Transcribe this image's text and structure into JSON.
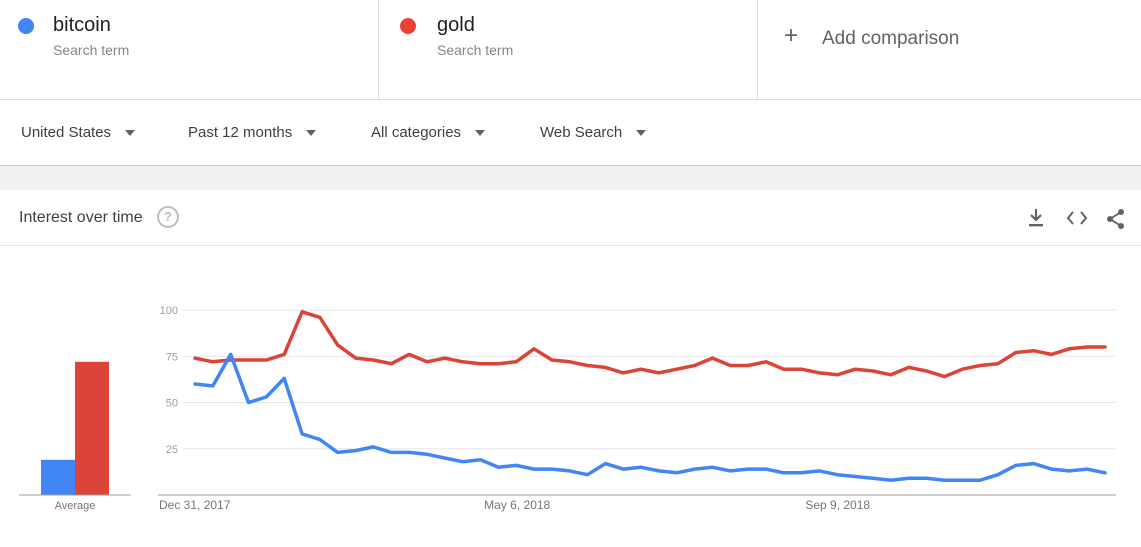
{
  "terms": [
    {
      "name": "bitcoin",
      "sub": "Search term",
      "color": "#4285f4"
    },
    {
      "name": "gold",
      "sub": "Search term",
      "color": "#ea4335"
    }
  ],
  "add_comparison": {
    "label": "Add comparison",
    "icon": "plus-icon"
  },
  "filters": {
    "region": "United States",
    "time": "Past 12 months",
    "category": "All categories",
    "search_type": "Web Search"
  },
  "card": {
    "title": "Interest over time",
    "help": "?",
    "icons": [
      "download-icon",
      "embed-icon",
      "share-icon"
    ]
  },
  "chart_data": {
    "type": "line",
    "ylim": [
      0,
      100
    ],
    "y_ticks": [
      "100",
      "75",
      "50",
      "25"
    ],
    "x_tick_labels": [
      "Dec 31, 2017",
      "May 6, 2018",
      "Sep 9, 2018"
    ],
    "x_tick_index": [
      0,
      18,
      36
    ],
    "grid": true,
    "average_label": "Average",
    "averages": [
      19,
      72
    ],
    "series": [
      {
        "name": "bitcoin",
        "color": "#4285f4",
        "values": [
          60,
          59,
          76,
          50,
          53,
          63,
          33,
          30,
          23,
          24,
          26,
          23,
          23,
          22,
          20,
          18,
          19,
          15,
          16,
          14,
          14,
          13,
          11,
          17,
          14,
          15,
          13,
          12,
          14,
          15,
          13,
          14,
          14,
          12,
          12,
          13,
          11,
          10,
          9,
          8,
          9,
          9,
          8,
          8,
          8,
          11,
          16,
          17,
          14,
          13,
          14,
          12
        ]
      },
      {
        "name": "gold",
        "color": "#db4437",
        "values": [
          74,
          72,
          73,
          73,
          73,
          76,
          99,
          96,
          81,
          74,
          73,
          71,
          76,
          72,
          74,
          72,
          71,
          71,
          72,
          79,
          73,
          72,
          70,
          69,
          66,
          68,
          66,
          68,
          70,
          74,
          70,
          70,
          72,
          68,
          68,
          66,
          65,
          68,
          67,
          65,
          69,
          67,
          64,
          68,
          70,
          71,
          77,
          78,
          76,
          79,
          80,
          80
        ]
      }
    ]
  }
}
